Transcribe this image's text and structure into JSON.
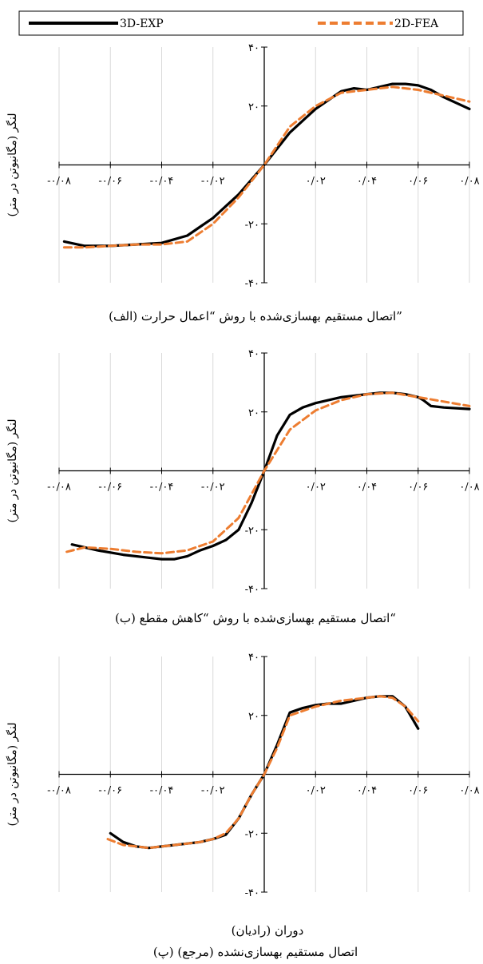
{
  "legend": {
    "exp_label": "3D-EXP",
    "fea_label": "2D-FEA"
  },
  "colors": {
    "exp": "#000000",
    "fea": "#ED7D31",
    "grid": "#D9D9D9",
    "axis": "#000000"
  },
  "xlabel_common": "دوران (رادیان)",
  "chart_data": [
    {
      "type": "line",
      "ylabel": "لنگر (مگانیوتن در متر)",
      "caption": "(الف) اتصال مستقیم بهسازی‌شده با روش “اعمال حرارت”",
      "xlim": [
        -0.08,
        0.08
      ],
      "ylim": [
        -40,
        40
      ],
      "x_tick_values": [
        -0.08,
        -0.06,
        -0.04,
        -0.02,
        0.02,
        0.04,
        0.06,
        0.08
      ],
      "x_tick_labels": [
        "-۰/۰۸",
        "-۰/۰۶",
        "-۰/۰۴",
        "-۰/۰۲",
        "۰/۰۲",
        "۰/۰۴",
        "۰/۰۶",
        "۰/۰۸"
      ],
      "y_tick_values": [
        -40,
        -20,
        20,
        40
      ],
      "y_tick_labels": [
        "-۴۰",
        "-۲۰",
        "۲۰",
        "۴۰"
      ],
      "grid": "vertical",
      "series": [
        {
          "name": "3D-EXP",
          "style": "solid",
          "x": [
            -0.078,
            -0.07,
            -0.06,
            -0.05,
            -0.04,
            -0.03,
            -0.02,
            -0.01,
            0.0,
            0.01,
            0.02,
            0.03,
            0.035,
            0.04,
            0.045,
            0.05,
            0.055,
            0.06,
            0.065,
            0.07,
            0.08
          ],
          "y": [
            -26,
            -27.5,
            -27.5,
            -27,
            -26.5,
            -24,
            -18,
            -10,
            0,
            11,
            19,
            25,
            26,
            25.5,
            26.5,
            27.5,
            27.5,
            27,
            25.5,
            23,
            19
          ]
        },
        {
          "name": "2D-FEA",
          "style": "dashed",
          "x": [
            -0.078,
            -0.07,
            -0.06,
            -0.05,
            -0.04,
            -0.03,
            -0.02,
            -0.01,
            0.0,
            0.01,
            0.02,
            0.03,
            0.04,
            0.05,
            0.06,
            0.07,
            0.08
          ],
          "y": [
            -28,
            -28,
            -27.5,
            -27,
            -27,
            -26,
            -20,
            -11,
            0,
            13,
            20,
            24.5,
            25.5,
            26.5,
            25.5,
            23.5,
            21.5
          ]
        }
      ]
    },
    {
      "type": "line",
      "ylabel": "لنگر (مگانیوتن در متر)",
      "caption": "(ب) اتصال مستقیم بهسازی‌شده با روش “کاهش مقطع“",
      "xlim": [
        -0.08,
        0.08
      ],
      "ylim": [
        -40,
        40
      ],
      "x_tick_values": [
        -0.08,
        -0.06,
        -0.04,
        -0.02,
        0.02,
        0.04,
        0.06,
        0.08
      ],
      "x_tick_labels": [
        "-۰/۰۸",
        "-۰/۰۶",
        "-۰/۰۴",
        "-۰/۰۲",
        "۰/۰۲",
        "۰/۰۴",
        "۰/۰۶",
        "۰/۰۸"
      ],
      "y_tick_values": [
        -40,
        -20,
        20,
        40
      ],
      "y_tick_labels": [
        "-۴۰",
        "-۲۰",
        "۲۰",
        "۴۰"
      ],
      "grid": "vertical",
      "series": [
        {
          "name": "3D-EXP",
          "style": "solid",
          "x": [
            -0.075,
            -0.065,
            -0.055,
            -0.045,
            -0.04,
            -0.035,
            -0.03,
            -0.025,
            -0.02,
            -0.015,
            -0.01,
            -0.005,
            0.0,
            0.005,
            0.01,
            0.015,
            0.02,
            0.03,
            0.04,
            0.045,
            0.05,
            0.055,
            0.06,
            0.062,
            0.065,
            0.07,
            0.08
          ],
          "y": [
            -25,
            -27,
            -28.5,
            -29.5,
            -30,
            -30,
            -29,
            -27,
            -25.5,
            -23.5,
            -20,
            -11,
            0,
            12,
            19,
            21.5,
            23,
            25,
            26,
            26.5,
            26.5,
            26,
            25,
            24,
            22,
            21.5,
            21
          ]
        },
        {
          "name": "2D-FEA",
          "style": "dashed",
          "x": [
            -0.077,
            -0.07,
            -0.06,
            -0.05,
            -0.04,
            -0.03,
            -0.02,
            -0.01,
            0.0,
            0.01,
            0.02,
            0.03,
            0.04,
            0.05,
            0.06,
            0.07,
            0.08
          ],
          "y": [
            -27.5,
            -26,
            -26.5,
            -27.5,
            -28,
            -27,
            -24,
            -16,
            0,
            14,
            20.5,
            24,
            26,
            26.5,
            25,
            23.5,
            22
          ]
        }
      ]
    },
    {
      "type": "line",
      "ylabel": "لنگر (مگانیوتن در متر)",
      "caption": "(پ) اتصال مستقیم بهسازی‌نشده (مرجع)",
      "xlim": [
        -0.08,
        0.08
      ],
      "ylim": [
        -40,
        40
      ],
      "x_tick_values": [
        -0.08,
        -0.06,
        -0.04,
        -0.02,
        0.02,
        0.04,
        0.06,
        0.08
      ],
      "x_tick_labels": [
        "-۰/۰۸",
        "-۰/۰۶",
        "-۰/۰۴",
        "-۰/۰۲",
        "۰/۰۲",
        "۰/۰۴",
        "۰/۰۶",
        "۰/۰۸"
      ],
      "y_tick_values": [
        -40,
        -20,
        20,
        40
      ],
      "y_tick_labels": [
        "-۴۰",
        "-۲۰",
        "۲۰",
        "۴۰"
      ],
      "grid": "vertical",
      "series": [
        {
          "name": "3D-EXP",
          "style": "solid",
          "x": [
            -0.06,
            -0.055,
            -0.05,
            -0.045,
            -0.04,
            -0.035,
            -0.03,
            -0.025,
            -0.02,
            -0.015,
            -0.01,
            -0.005,
            0.0,
            0.005,
            0.01,
            0.015,
            0.02,
            0.025,
            0.03,
            0.035,
            0.04,
            0.045,
            0.05,
            0.055,
            0.06
          ],
          "y": [
            -20,
            -23,
            -24.5,
            -25,
            -24.5,
            -24,
            -23.5,
            -23,
            -22,
            -20.5,
            -15,
            -7,
            0,
            10,
            21,
            22.5,
            23.5,
            24,
            24,
            25,
            26,
            26.5,
            26.5,
            23,
            15.5
          ]
        },
        {
          "name": "2D-FEA",
          "style": "dashed",
          "x": [
            -0.061,
            -0.055,
            -0.05,
            -0.045,
            -0.04,
            -0.035,
            -0.03,
            -0.025,
            -0.02,
            -0.015,
            -0.01,
            -0.005,
            0.0,
            0.005,
            0.01,
            0.015,
            0.02,
            0.025,
            0.03,
            0.035,
            0.04,
            0.045,
            0.05,
            0.055,
            0.06
          ],
          "y": [
            -22,
            -24,
            -24.5,
            -25,
            -24.5,
            -24,
            -23.5,
            -23,
            -22,
            -20,
            -15,
            -7,
            0,
            9,
            20,
            21.5,
            23,
            24,
            25,
            25.5,
            26,
            26.5,
            26,
            23,
            18
          ]
        }
      ]
    }
  ]
}
